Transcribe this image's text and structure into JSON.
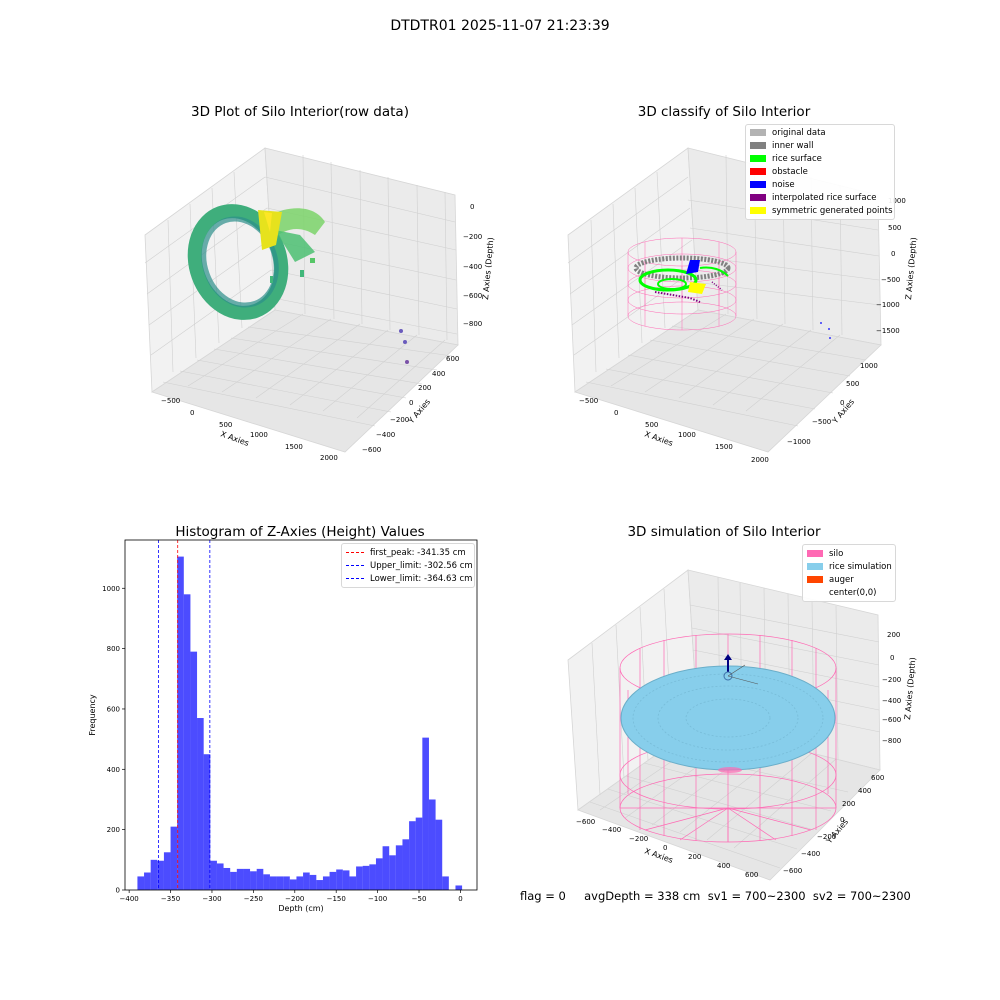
{
  "figure": {
    "suptitle": "DTDTR01 2025-11-07 21:23:39",
    "footer": "flag = 0     avgDepth = 338 cm  sv1 = 700~2300  sv2 = 700~2300"
  },
  "panels": {
    "raw": {
      "title": "3D Plot of Silo Interior(row data)",
      "xlabel": "X Axies",
      "ylabel": "Y Axies",
      "zlabel": "Z Axies (Depth)",
      "xticks": [
        "−500",
        "0",
        "500",
        "1000",
        "1500",
        "2000"
      ],
      "yticks": [
        "−600",
        "−400",
        "−200",
        "0",
        "200",
        "400",
        "600"
      ],
      "zticks": [
        "0",
        "−200",
        "−400",
        "−600",
        "−800"
      ]
    },
    "classify": {
      "title": "3D classify of Silo Interior",
      "xlabel": "X Axies",
      "ylabel": "Y Axies",
      "zlabel": "Z Axies (Depth)",
      "xticks": [
        "−500",
        "0",
        "500",
        "1000",
        "1500",
        "2000"
      ],
      "yticks": [
        "−1000",
        "−500",
        "0",
        "500",
        "1000"
      ],
      "zticks": [
        "1000",
        "500",
        "0",
        "−500",
        "−1000",
        "−1500"
      ],
      "legend": [
        {
          "label": "original data",
          "color": "#b3b3b3"
        },
        {
          "label": "inner wall",
          "color": "#808080"
        },
        {
          "label": "rice surface",
          "color": "#00ff00"
        },
        {
          "label": "obstacle",
          "color": "#ff0000"
        },
        {
          "label": "noise",
          "color": "#0000ff"
        },
        {
          "label": "interpolated rice surface",
          "color": "#800080"
        },
        {
          "label": "symmetric generated points",
          "color": "#ffff00"
        }
      ]
    },
    "simulation": {
      "title": "3D simulation of Silo Interior",
      "xlabel": "X Axies",
      "ylabel": "Y Axies",
      "zlabel": "Z Axies (Depth)",
      "xticks": [
        "−600",
        "−400",
        "−200",
        "0",
        "200",
        "400",
        "600"
      ],
      "yticks": [
        "−600",
        "−400",
        "−200",
        "0",
        "200",
        "400",
        "600"
      ],
      "zticks": [
        "200",
        "0",
        "−200",
        "−400",
        "−600",
        "−800"
      ],
      "legend": [
        {
          "label": "silo",
          "color": "#ff69b4"
        },
        {
          "label": "rice simulation",
          "color": "#87ceeb"
        },
        {
          "label": "auger",
          "color": "#ff4500"
        },
        {
          "label": "center(0,0)",
          "color": ""
        }
      ]
    }
  },
  "chart_data": {
    "type": "bar",
    "title": "Histogram of Z-Axies (Height) Values",
    "xlabel": "Depth (cm)",
    "ylabel": "Frequency",
    "xlim": [
      -405,
      20
    ],
    "ylim": [
      0,
      1160
    ],
    "xticks": [
      -400,
      -350,
      -300,
      -250,
      -200,
      -150,
      -100,
      -50,
      0
    ],
    "yticks": [
      0,
      200,
      400,
      600,
      800,
      1000
    ],
    "bar_color": "#0000ff",
    "bins": [
      {
        "x0": -390,
        "x1": -382,
        "count": 45
      },
      {
        "x0": -382,
        "x1": -374,
        "count": 58
      },
      {
        "x0": -374,
        "x1": -366,
        "count": 100
      },
      {
        "x0": -366,
        "x1": -358,
        "count": 97
      },
      {
        "x0": -358,
        "x1": -350,
        "count": 125
      },
      {
        "x0": -350,
        "x1": -342,
        "count": 210
      },
      {
        "x0": -342,
        "x1": -334,
        "count": 1105
      },
      {
        "x0": -334,
        "x1": -326,
        "count": 980
      },
      {
        "x0": -326,
        "x1": -318,
        "count": 790
      },
      {
        "x0": -318,
        "x1": -310,
        "count": 570
      },
      {
        "x0": -310,
        "x1": -302,
        "count": 450
      },
      {
        "x0": -302,
        "x1": -294,
        "count": 97
      },
      {
        "x0": -294,
        "x1": -286,
        "count": 88
      },
      {
        "x0": -286,
        "x1": -278,
        "count": 73
      },
      {
        "x0": -278,
        "x1": -270,
        "count": 60
      },
      {
        "x0": -270,
        "x1": -262,
        "count": 70
      },
      {
        "x0": -262,
        "x1": -254,
        "count": 70
      },
      {
        "x0": -254,
        "x1": -246,
        "count": 62
      },
      {
        "x0": -246,
        "x1": -238,
        "count": 70
      },
      {
        "x0": -238,
        "x1": -230,
        "count": 52
      },
      {
        "x0": -230,
        "x1": -222,
        "count": 45
      },
      {
        "x0": -222,
        "x1": -214,
        "count": 45
      },
      {
        "x0": -214,
        "x1": -206,
        "count": 45
      },
      {
        "x0": -206,
        "x1": -198,
        "count": 35
      },
      {
        "x0": -198,
        "x1": -190,
        "count": 45
      },
      {
        "x0": -190,
        "x1": -182,
        "count": 58
      },
      {
        "x0": -182,
        "x1": -174,
        "count": 50
      },
      {
        "x0": -174,
        "x1": -166,
        "count": 33
      },
      {
        "x0": -166,
        "x1": -158,
        "count": 45
      },
      {
        "x0": -158,
        "x1": -150,
        "count": 60
      },
      {
        "x0": -150,
        "x1": -142,
        "count": 68
      },
      {
        "x0": -142,
        "x1": -134,
        "count": 65
      },
      {
        "x0": -134,
        "x1": -126,
        "count": 45
      },
      {
        "x0": -126,
        "x1": -118,
        "count": 78
      },
      {
        "x0": -118,
        "x1": -110,
        "count": 80
      },
      {
        "x0": -110,
        "x1": -102,
        "count": 85
      },
      {
        "x0": -102,
        "x1": -94,
        "count": 105
      },
      {
        "x0": -94,
        "x1": -86,
        "count": 145
      },
      {
        "x0": -86,
        "x1": -78,
        "count": 115
      },
      {
        "x0": -78,
        "x1": -70,
        "count": 148
      },
      {
        "x0": -70,
        "x1": -62,
        "count": 168
      },
      {
        "x0": -62,
        "x1": -54,
        "count": 228
      },
      {
        "x0": -54,
        "x1": -46,
        "count": 240
      },
      {
        "x0": -46,
        "x1": -38,
        "count": 505
      },
      {
        "x0": -38,
        "x1": -30,
        "count": 300
      },
      {
        "x0": -30,
        "x1": -22,
        "count": 233
      },
      {
        "x0": -22,
        "x1": -14,
        "count": 45
      },
      {
        "x0": -6,
        "x1": 2,
        "count": 15
      }
    ],
    "reference_lines": [
      {
        "label": "first_peak: -341.35 cm",
        "x": -341.35,
        "color": "#ff0000"
      },
      {
        "label": "Upper_limit: -302.56 cm",
        "x": -302.56,
        "color": "#0000ff"
      },
      {
        "label": "Lower_limit: -364.63 cm",
        "x": -364.63,
        "color": "#0000ff"
      }
    ]
  }
}
